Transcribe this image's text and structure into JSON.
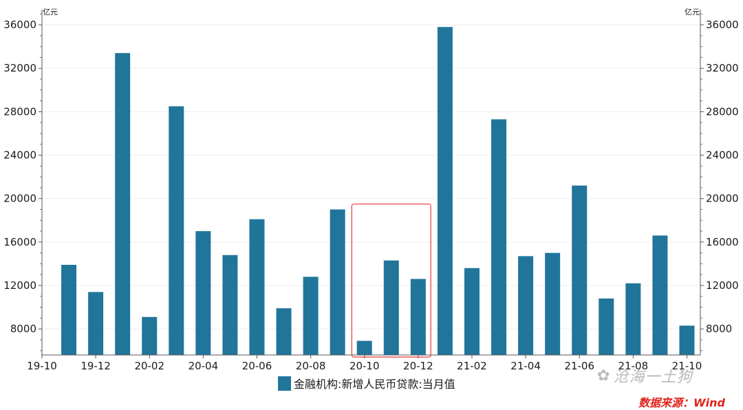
{
  "chart_data": {
    "type": "bar",
    "x": [
      "19-11",
      "19-12",
      "20-01",
      "20-02",
      "20-03",
      "20-04",
      "20-05",
      "20-06",
      "20-07",
      "20-08",
      "20-09",
      "20-10",
      "20-11",
      "20-12",
      "21-01",
      "21-02",
      "21-03",
      "21-04",
      "21-05",
      "21-06",
      "21-07",
      "21-08",
      "21-09",
      "21-10"
    ],
    "x_tick_labels": [
      "19-10",
      "19-12",
      "20-02",
      "20-04",
      "20-06",
      "20-08",
      "20-10",
      "20-12",
      "21-02",
      "21-04",
      "21-06",
      "21-08",
      "21-10"
    ],
    "series": [
      {
        "name": "金融机构:新增人民币贷款:当月值",
        "color": "#21759b",
        "values": [
          13900,
          11400,
          33400,
          9100,
          28500,
          17000,
          14800,
          18100,
          9900,
          12800,
          19000,
          6900,
          14300,
          12600,
          35800,
          13600,
          27300,
          14700,
          15000,
          21200,
          10800,
          12200,
          16600,
          8300
        ]
      }
    ],
    "ylim": [
      5600,
      37400
    ],
    "y_ticks": [
      8000,
      12000,
      16000,
      20000,
      24000,
      28000,
      32000,
      36000
    ],
    "ylabel_left": "亿元",
    "ylabel_right": "亿元",
    "highlight": {
      "from": "20-10",
      "to": "20-12",
      "color": "#e8363b"
    },
    "grid": true,
    "legend_position": "bottom"
  },
  "watermark": "沧海一土狗",
  "source": "数据来源：Wind"
}
